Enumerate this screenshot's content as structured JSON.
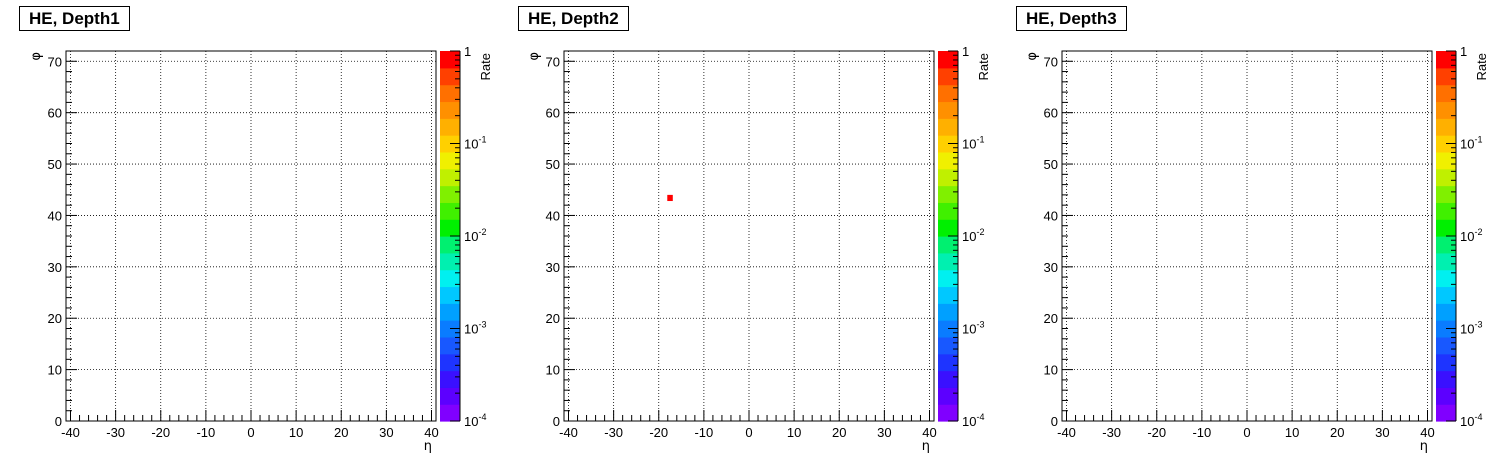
{
  "chart_data": [
    {
      "type": "heatmap",
      "title": "HE, Depth1",
      "xlabel": "η",
      "ylabel": "φ",
      "zlabel": "Rate",
      "xlim": [
        -41,
        41
      ],
      "ylim": [
        0,
        72
      ],
      "xticks": [
        "-40",
        "-30",
        "-20",
        "-10",
        "0",
        "10",
        "20",
        "30",
        "40"
      ],
      "yticks": [
        "0",
        "10",
        "20",
        "30",
        "40",
        "50",
        "60",
        "70"
      ],
      "zscale": "log",
      "zlim": [
        0.0001,
        1
      ],
      "zticks": [
        {
          "base": "10",
          "exp": "-4",
          "value": 0.0001
        },
        {
          "base": "10",
          "exp": "-3",
          "value": 0.001
        },
        {
          "base": "10",
          "exp": "-2",
          "value": 0.01
        },
        {
          "base": "10",
          "exp": "-1",
          "value": 0.1
        },
        {
          "base": "1",
          "exp": "",
          "value": 1
        }
      ],
      "grid": true,
      "cells": []
    },
    {
      "type": "heatmap",
      "title": "HE, Depth2",
      "xlabel": "η",
      "ylabel": "φ",
      "zlabel": "Rate",
      "xlim": [
        -41,
        41
      ],
      "ylim": [
        0,
        72
      ],
      "xticks": [
        "-40",
        "-30",
        "-20",
        "-10",
        "0",
        "10",
        "20",
        "30",
        "40"
      ],
      "yticks": [
        "0",
        "10",
        "20",
        "30",
        "40",
        "50",
        "60",
        "70"
      ],
      "zscale": "log",
      "zlim": [
        0.0001,
        1
      ],
      "zticks": [
        {
          "base": "10",
          "exp": "-4",
          "value": 0.0001
        },
        {
          "base": "10",
          "exp": "-3",
          "value": 0.001
        },
        {
          "base": "10",
          "exp": "-2",
          "value": 0.01
        },
        {
          "base": "10",
          "exp": "-1",
          "value": 0.1
        },
        {
          "base": "1",
          "exp": "",
          "value": 1
        }
      ],
      "grid": true,
      "cells": [
        {
          "eta": -18,
          "phi": 43,
          "rate": 1
        }
      ]
    },
    {
      "type": "heatmap",
      "title": "HE, Depth3",
      "xlabel": "η",
      "ylabel": "φ",
      "zlabel": "Rate",
      "xlim": [
        -41,
        41
      ],
      "ylim": [
        0,
        72
      ],
      "xticks": [
        "-40",
        "-30",
        "-20",
        "-10",
        "0",
        "10",
        "20",
        "30",
        "40"
      ],
      "yticks": [
        "0",
        "10",
        "20",
        "30",
        "40",
        "50",
        "60",
        "70"
      ],
      "zscale": "log",
      "zlim": [
        0.0001,
        1
      ],
      "zticks": [
        {
          "base": "10",
          "exp": "-4",
          "value": 0.0001
        },
        {
          "base": "10",
          "exp": "-3",
          "value": 0.001
        },
        {
          "base": "10",
          "exp": "-2",
          "value": 0.01
        },
        {
          "base": "10",
          "exp": "-1",
          "value": 0.1
        },
        {
          "base": "1",
          "exp": "",
          "value": 1
        }
      ],
      "grid": true,
      "cells": []
    }
  ],
  "palette": [
    "#8000ff",
    "#5c00ff",
    "#3a10ff",
    "#1e34ff",
    "#1858ff",
    "#0a7cff",
    "#00a0ff",
    "#00c8ff",
    "#00f0f0",
    "#00f0b0",
    "#00f070",
    "#00f000",
    "#40f000",
    "#80f000",
    "#c0f000",
    "#f0f000",
    "#ffd000",
    "#ffb000",
    "#ff9000",
    "#ff7000",
    "#ff4000",
    "#ff0000"
  ],
  "colors": {
    "grid": "#000000",
    "frame": "#000000",
    "cell": "#ff0000"
  }
}
